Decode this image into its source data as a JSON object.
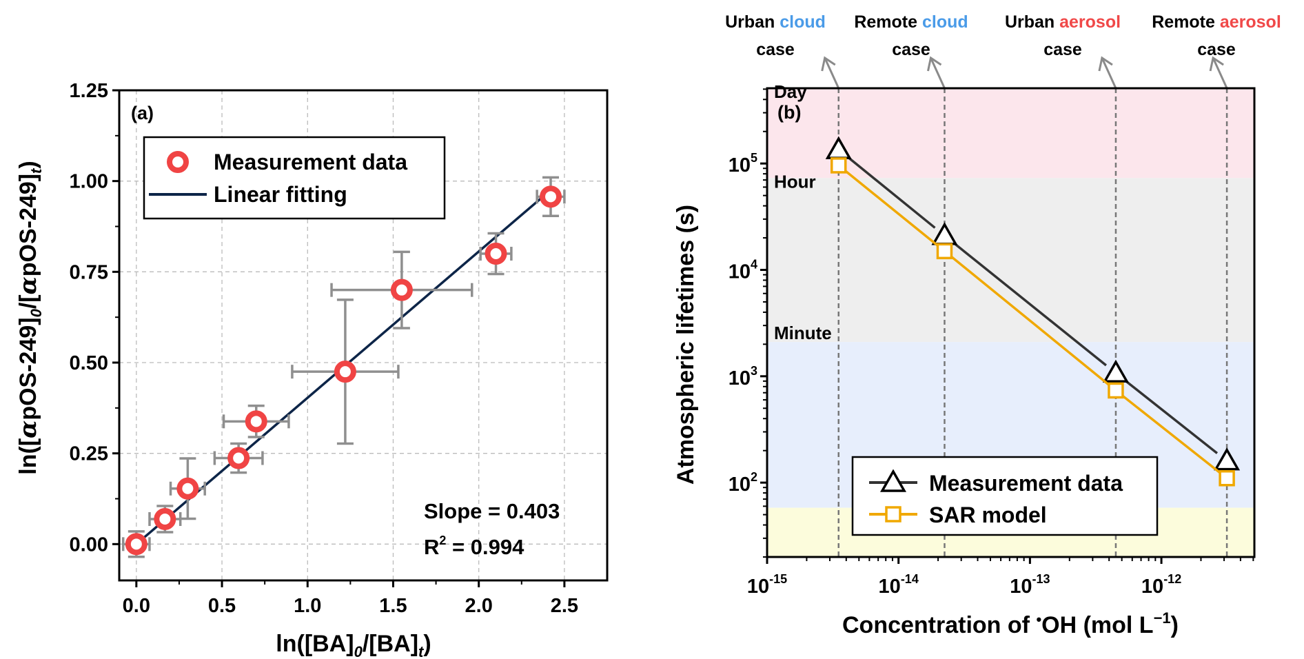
{
  "chart_data": [
    {
      "type": "scatter",
      "panel_label": "(a)",
      "xlabel": "ln([BA]0/[BA]t)",
      "xlabel_parts": [
        "ln([BA]",
        "0",
        "/[BA]",
        "t",
        ")"
      ],
      "ylabel": "ln([αpOS-249]0/[αpOS-249]t)",
      "ylabel_parts": [
        "ln([",
        "α",
        "pOS-249]",
        "0",
        "/[",
        "α",
        "pOS-249]",
        "t",
        ")"
      ],
      "xlim": [
        -0.1,
        2.75
      ],
      "ylim": [
        -0.1,
        1.25
      ],
      "xticks": [
        0.0,
        0.5,
        1.0,
        1.5,
        2.0,
        2.5
      ],
      "xtick_labels": [
        "0.0",
        "0.5",
        "1.0",
        "1.5",
        "2.0",
        "2.5"
      ],
      "yticks": [
        0.0,
        0.25,
        0.5,
        0.75,
        1.0,
        1.25
      ],
      "ytick_labels": [
        "0.00",
        "0.25",
        "0.50",
        "0.75",
        "1.00",
        "1.25"
      ],
      "grid": true,
      "legend": {
        "placement": "top-left",
        "entries": [
          "Measurement data",
          "Linear fitting"
        ]
      },
      "series": [
        {
          "name": "Measurement data",
          "color": "#f04444",
          "x": [
            0.0,
            0.167,
            0.3,
            0.597,
            0.7,
            1.22,
            1.55,
            2.1,
            2.42
          ],
          "y": [
            0.0,
            0.069,
            0.153,
            0.237,
            0.338,
            0.475,
            0.7,
            0.8,
            0.957
          ],
          "xerr": [
            0.077,
            0.09,
            0.1,
            0.14,
            0.19,
            0.31,
            0.41,
            0.09,
            0.08
          ],
          "yerr": [
            0.035,
            0.036,
            0.083,
            0.04,
            0.043,
            0.198,
            0.105,
            0.056,
            0.053
          ]
        },
        {
          "name": "Linear fitting",
          "color": "#0d2548",
          "slope": 0.403,
          "x_range": [
            0.0,
            2.42
          ]
        }
      ],
      "annotations": {
        "slope": "Slope = 0.403",
        "r2_prefix": "R",
        "r2_sup": "2",
        "r2_value": " = 0.994"
      }
    },
    {
      "type": "line",
      "panel_label": "(b)",
      "xscale": "log",
      "yscale": "log",
      "xlabel": "Concentration of •OH (mol L−1)",
      "xlabel_parts": [
        "Concentration of ",
        "•",
        "OH (mol L",
        "−1",
        ")"
      ],
      "ylabel": "Atmospheric lifetimes (s)",
      "xlim": [
        1e-15,
        5.1e-12
      ],
      "ylim": [
        20,
        510000
      ],
      "xtick_exponents": [
        "-15",
        "-14",
        "-13",
        "-12"
      ],
      "ytick_exponents": [
        "2",
        "3",
        "4",
        "5"
      ],
      "tick_base": "10",
      "bands": [
        {
          "label": "Day",
          "from": 73000,
          "to": 510000,
          "color": "#fce6ec"
        },
        {
          "label": "Hour",
          "from": 2100,
          "to": 73000,
          "color": "#eeeeee"
        },
        {
          "label": "Minute",
          "from": 58,
          "to": 2100,
          "color": "#e7eefc"
        },
        {
          "label": "",
          "from": 20,
          "to": 58,
          "color": "#fcfcdc"
        }
      ],
      "cases": [
        {
          "x": 3.5e-15,
          "line1": "Urban ",
          "word": "cloud",
          "line2": "case",
          "color": "#4a9be8"
        },
        {
          "x": 2.24e-14,
          "line1": "Remote ",
          "word": "cloud",
          "line2": "case",
          "color": "#4a9be8"
        },
        {
          "x": 4.5e-13,
          "line1": "Urban ",
          "word": "aerosol",
          "line2": "case",
          "color": "#f04848"
        },
        {
          "x": 3.15e-12,
          "line1": "Remote ",
          "word": "aerosol",
          "line2": "case",
          "color": "#f04848"
        }
      ],
      "legend": {
        "placement": "bottom-right",
        "entries": [
          "Measurement data",
          "SAR model"
        ]
      },
      "series": [
        {
          "name": "Measurement data",
          "marker": "triangle",
          "color": "#333333",
          "x": [
            3.5e-15,
            2.24e-14,
            4.5e-13,
            3.15e-12
          ],
          "y": [
            135000,
            21000,
            1070,
            160
          ]
        },
        {
          "name": "SAR model",
          "marker": "square",
          "color": "#f0a800",
          "x": [
            3.5e-15,
            2.24e-14,
            4.5e-13,
            3.15e-12
          ],
          "y": [
            96000,
            15000,
            735,
            110
          ]
        }
      ]
    }
  ]
}
